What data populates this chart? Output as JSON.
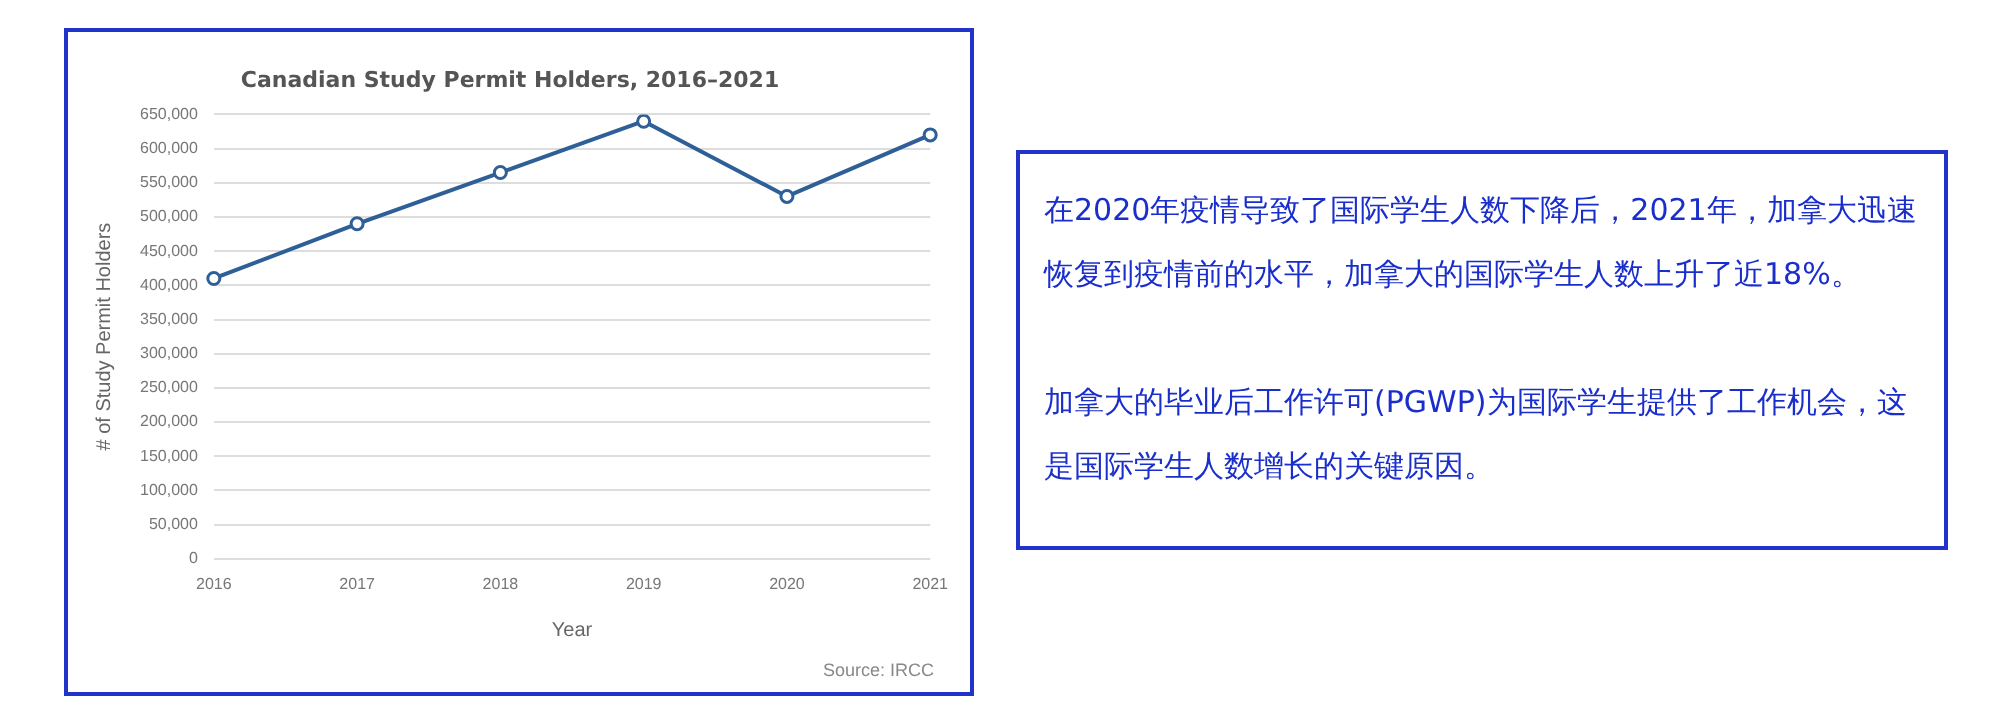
{
  "chart_data": [
    {
      "type": "line",
      "title": "Canadian Study Permit Holders, 2016–2021",
      "xlabel": "Year",
      "ylabel": "# of Study Permit Holders",
      "categories": [
        "2016",
        "2017",
        "2018",
        "2019",
        "2020",
        "2021"
      ],
      "series": [
        {
          "color": "#2f5f97",
          "values": [
            410000,
            490000,
            565000,
            640000,
            530000,
            620000
          ]
        }
      ],
      "ylim": [
        0,
        650000
      ],
      "yticks": [
        0,
        {
          "value": 50000,
          "label": "50,000"
        },
        {
          "value": 100000,
          "label": "100,000"
        },
        {
          "value": 150000,
          "label": "150,000"
        },
        {
          "value": 200000,
          "label": "200,000"
        },
        {
          "value": 250000,
          "label": "250,000"
        },
        {
          "value": 300000,
          "label": "300,000"
        },
        {
          "value": 350000,
          "label": "350,000"
        },
        {
          "value": 400000,
          "label": "400,000"
        },
        {
          "value": 450000,
          "label": "450,000"
        },
        {
          "value": 500000,
          "label": "500,000"
        },
        {
          "value": 550000,
          "label": "550,000"
        },
        {
          "value": 600000,
          "label": "600,000"
        },
        {
          "value": 650000,
          "label": "650,000"
        }
      ],
      "grid": "y",
      "legend": false,
      "marker": "circle",
      "line_style": "solid",
      "annotations": [
        "Source: IRCC"
      ]
    },
    {
      "type": "other",
      "annotations": [
        "在2020年疫情导致了国际学生人数下降后，2021年，加拿大迅速恢复到疫情前的水平，加拿大的国际学生人数上升了近18%。",
        "加拿大的毕业后工作许可(PGWP)为国际学生提供了工作机会，这是国际学生人数增长的关键原因。"
      ]
    }
  ]
}
